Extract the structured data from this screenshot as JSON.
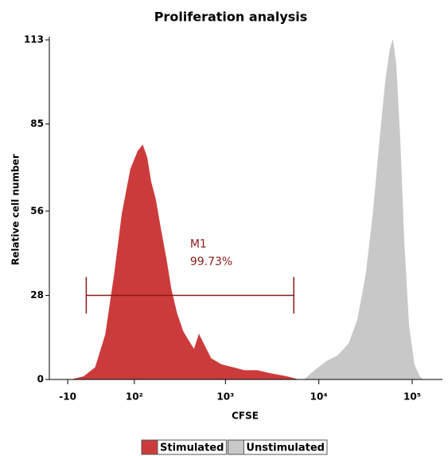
{
  "chart_data": {
    "type": "histogram-area",
    "title": "Proliferation analysis",
    "x_label": "CFSE",
    "y_label": "Relative cell number",
    "xscale": "biexponential",
    "xlim": [
      -35,
      180000
    ],
    "xticks": [
      {
        "value": -10,
        "label": "-10"
      },
      {
        "value": 100,
        "label": "10²"
      },
      {
        "value": 1000,
        "label": "10³"
      },
      {
        "value": 10000,
        "label": "10⁴"
      },
      {
        "value": 100000,
        "label": "10⁵"
      }
    ],
    "ylim": [
      0,
      113
    ],
    "yticks": [
      0,
      28,
      56,
      85,
      113
    ],
    "series": [
      {
        "name": "Stimulated",
        "color": "#cc3b3b",
        "x": [
          -5,
          10,
          25,
          40,
          55,
          70,
          90,
          110,
          125,
          140,
          155,
          175,
          200,
          230,
          260,
          300,
          350,
          400,
          460,
          520,
          580,
          700,
          900,
          1200,
          1600,
          2200,
          3000,
          4500,
          6000
        ],
        "values": [
          0,
          1,
          4,
          15,
          35,
          55,
          70,
          76,
          78,
          74,
          66,
          60,
          50,
          40,
          30,
          22,
          16,
          13,
          10,
          15,
          12,
          7,
          5,
          4,
          3,
          3,
          2,
          1,
          0
        ]
      },
      {
        "name": "Unstimulated",
        "color": "#c8c8c8",
        "x": [
          7000,
          9000,
          12000,
          16000,
          21000,
          26000,
          32000,
          38000,
          45000,
          52000,
          58000,
          62000,
          67000,
          74000,
          82000,
          92000,
          105000,
          120000,
          130000
        ],
        "values": [
          0,
          3,
          6,
          8,
          12,
          20,
          35,
          55,
          80,
          100,
          110,
          113,
          105,
          80,
          45,
          18,
          5,
          1,
          0
        ]
      }
    ],
    "markers": [
      {
        "label": "M1",
        "value": 99.73,
        "value_label": "99.73%",
        "range": [
          13,
          5400
        ],
        "y": 28,
        "color": "#8b1a1a"
      }
    ]
  }
}
